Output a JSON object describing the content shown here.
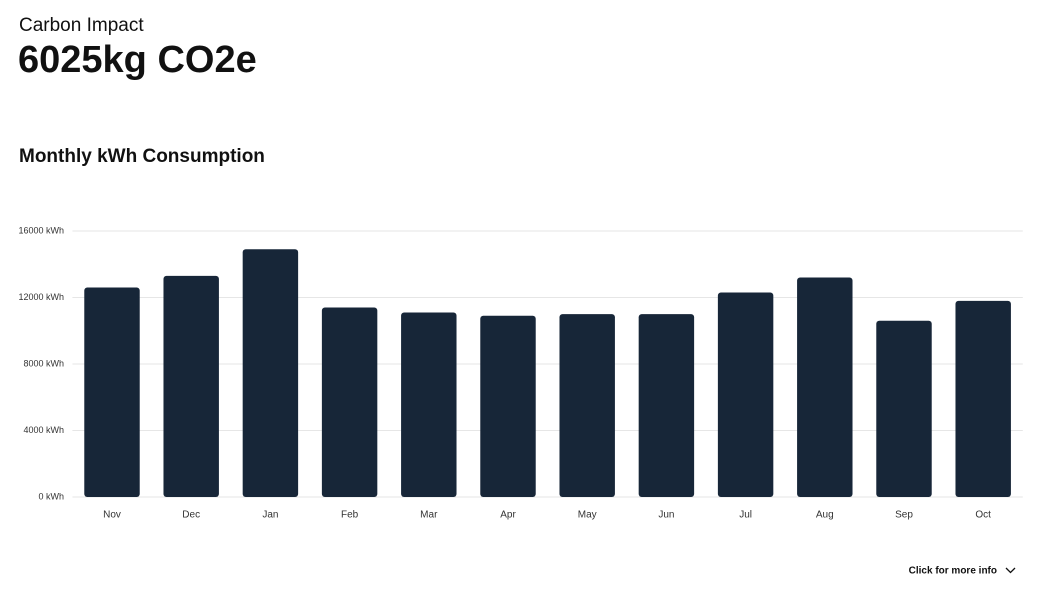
{
  "header": {
    "label": "Carbon Impact",
    "value": "6025kg CO2e"
  },
  "chart_data": {
    "type": "bar",
    "title": "Monthly kWh Consumption",
    "categories": [
      "Nov",
      "Dec",
      "Jan",
      "Feb",
      "Mar",
      "Apr",
      "May",
      "Jun",
      "Jul",
      "Aug",
      "Sep",
      "Oct"
    ],
    "values": [
      12600,
      13300,
      14900,
      11400,
      11100,
      10900,
      11000,
      11000,
      12300,
      13200,
      10600,
      11800
    ],
    "color": "#172638",
    "ylim": [
      0,
      16000
    ],
    "yticks": [
      {
        "value": 0,
        "label": "0 kWh"
      },
      {
        "value": 4000,
        "label": "4000 kWh"
      },
      {
        "value": 8000,
        "label": "8000 kWh"
      },
      {
        "value": 12000,
        "label": "12000 kWh"
      },
      {
        "value": 16000,
        "label": "16000 kWh"
      }
    ],
    "grid": true
  },
  "footer": {
    "link": "Click for more info"
  }
}
